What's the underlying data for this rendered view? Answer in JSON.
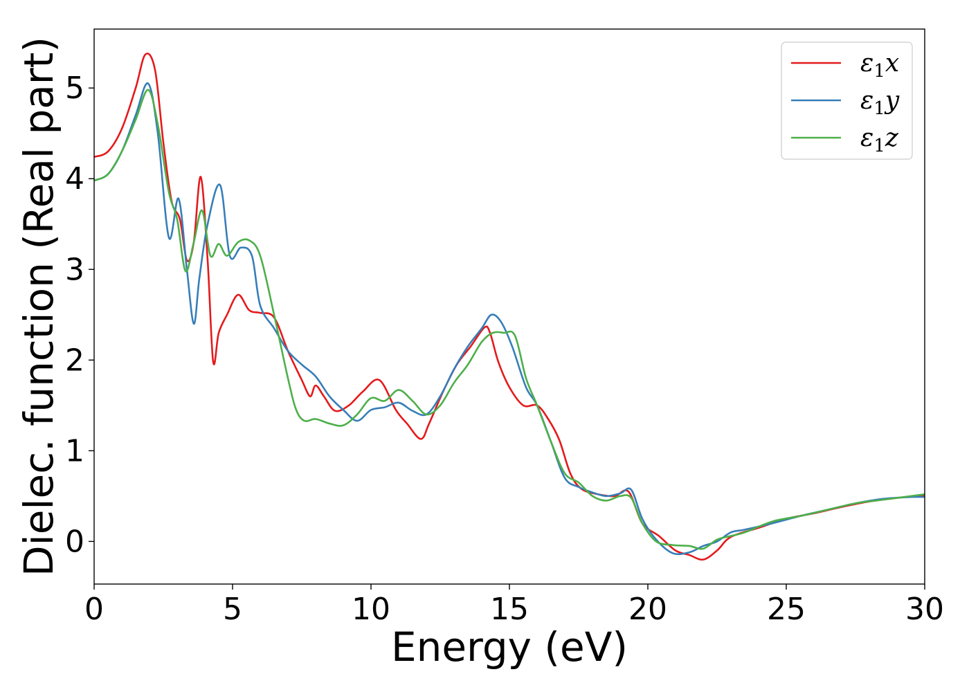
{
  "chart_data": {
    "type": "line",
    "title": "",
    "xlabel": "Energy (eV)",
    "ylabel": "Dielec. function (Real part)",
    "xlim": [
      0,
      30
    ],
    "ylim": [
      -0.47,
      5.65
    ],
    "xticks": [
      0,
      5,
      10,
      15,
      20,
      25,
      30
    ],
    "yticks": [
      0,
      1,
      2,
      3,
      4,
      5
    ],
    "grid": false,
    "legend_position": "top-right",
    "series": [
      {
        "name": "ε₁x",
        "legend_symbol": "ε",
        "legend_subscript": "1",
        "legend_suffix": "x",
        "color": "#e41a1c",
        "x": [
          0,
          0.5,
          1,
          1.5,
          1.85,
          2.2,
          2.5,
          2.8,
          3.1,
          3.35,
          3.6,
          3.85,
          4.1,
          4.3,
          4.5,
          4.8,
          5.2,
          5.6,
          6,
          6.5,
          7,
          7.5,
          7.8,
          8,
          8.3,
          8.7,
          9.2,
          9.7,
          10.3,
          10.9,
          11.3,
          11.8,
          12.1,
          12.6,
          13.1,
          13.6,
          14.1,
          14.3,
          14.6,
          15,
          15.5,
          16,
          16.4,
          16.8,
          17.2,
          17.6,
          18.2,
          18.8,
          19.3,
          19.8,
          20.4,
          21,
          21.5,
          22,
          22.5,
          23,
          24,
          25,
          26,
          27,
          28,
          29,
          30
        ],
        "y": [
          4.24,
          4.3,
          4.55,
          5.0,
          5.37,
          5.2,
          4.4,
          3.75,
          3.55,
          3.1,
          3.3,
          4.02,
          3.1,
          1.98,
          2.3,
          2.5,
          2.72,
          2.55,
          2.52,
          2.47,
          2.1,
          1.78,
          1.6,
          1.72,
          1.6,
          1.44,
          1.5,
          1.65,
          1.78,
          1.45,
          1.3,
          1.13,
          1.3,
          1.65,
          1.95,
          2.15,
          2.36,
          2.3,
          1.98,
          1.7,
          1.5,
          1.5,
          1.35,
          1.12,
          0.75,
          0.58,
          0.52,
          0.5,
          0.55,
          0.2,
          0.06,
          -0.1,
          -0.15,
          -0.2,
          -0.1,
          0.05,
          0.15,
          0.25,
          0.31,
          0.38,
          0.44,
          0.48,
          0.51
        ]
      },
      {
        "name": "ε₁y",
        "legend_symbol": "ε",
        "legend_subscript": "1",
        "legend_suffix": "y",
        "color": "#377eb8",
        "x": [
          0,
          0.5,
          1,
          1.5,
          1.95,
          2.3,
          2.7,
          3.05,
          3.35,
          3.6,
          3.8,
          4.1,
          4.55,
          4.9,
          5.3,
          5.7,
          6,
          6.5,
          7,
          7.5,
          8,
          8.5,
          9,
          9.5,
          10,
          10.5,
          11,
          11.5,
          12,
          12.5,
          13,
          13.5,
          14,
          14.35,
          14.7,
          15.1,
          15.6,
          16,
          16.5,
          17,
          17.5,
          18,
          18.5,
          19,
          19.4,
          19.8,
          20.3,
          20.9,
          21.5,
          22,
          22.5,
          23,
          23.5,
          24.5,
          25.5,
          26.5,
          27.5,
          28.5,
          29.5,
          30
        ],
        "y": [
          3.98,
          4.05,
          4.3,
          4.7,
          5.05,
          4.5,
          3.35,
          3.78,
          3.0,
          2.4,
          2.9,
          3.5,
          3.93,
          3.15,
          3.24,
          3.15,
          2.6,
          2.35,
          2.1,
          1.95,
          1.82,
          1.6,
          1.45,
          1.33,
          1.45,
          1.48,
          1.53,
          1.44,
          1.4,
          1.6,
          1.9,
          2.15,
          2.35,
          2.5,
          2.42,
          2.15,
          1.7,
          1.5,
          1.1,
          0.7,
          0.6,
          0.54,
          0.5,
          0.53,
          0.57,
          0.25,
          0.02,
          -0.13,
          -0.12,
          -0.05,
          0.0,
          0.1,
          0.13,
          0.2,
          0.28,
          0.35,
          0.42,
          0.47,
          0.49,
          0.49
        ]
      },
      {
        "name": "ε₁z",
        "legend_symbol": "ε",
        "legend_subscript": "1",
        "legend_suffix": "z",
        "color": "#4daf4a",
        "x": [
          0,
          0.5,
          1,
          1.5,
          1.95,
          2.3,
          2.7,
          3.0,
          3.3,
          3.6,
          3.9,
          4.2,
          4.5,
          4.8,
          5.2,
          5.6,
          6,
          6.5,
          7,
          7.3,
          7.6,
          8,
          8.5,
          9,
          9.5,
          10,
          10.5,
          11,
          11.5,
          12,
          12.5,
          13,
          13.5,
          14,
          14.4,
          14.8,
          15.2,
          15.6,
          16,
          16.5,
          17,
          17.5,
          18,
          18.5,
          19,
          19.4,
          19.8,
          20.3,
          20.9,
          21.5,
          22,
          22.5,
          23,
          23.5,
          24.5,
          25.5,
          26.5,
          27.5,
          28.5,
          29.5,
          30
        ],
        "y": [
          3.98,
          4.05,
          4.3,
          4.65,
          4.98,
          4.6,
          3.85,
          3.55,
          2.98,
          3.3,
          3.65,
          3.15,
          3.28,
          3.15,
          3.3,
          3.32,
          3.15,
          2.5,
          1.8,
          1.45,
          1.33,
          1.35,
          1.3,
          1.28,
          1.4,
          1.58,
          1.55,
          1.67,
          1.55,
          1.4,
          1.5,
          1.75,
          1.95,
          2.2,
          2.3,
          2.3,
          2.27,
          1.8,
          1.5,
          1.1,
          0.75,
          0.65,
          0.5,
          0.45,
          0.5,
          0.48,
          0.2,
          0.0,
          -0.04,
          -0.05,
          -0.08,
          0.02,
          0.06,
          0.1,
          0.22,
          0.28,
          0.35,
          0.42,
          0.46,
          0.5,
          0.52
        ]
      }
    ]
  }
}
